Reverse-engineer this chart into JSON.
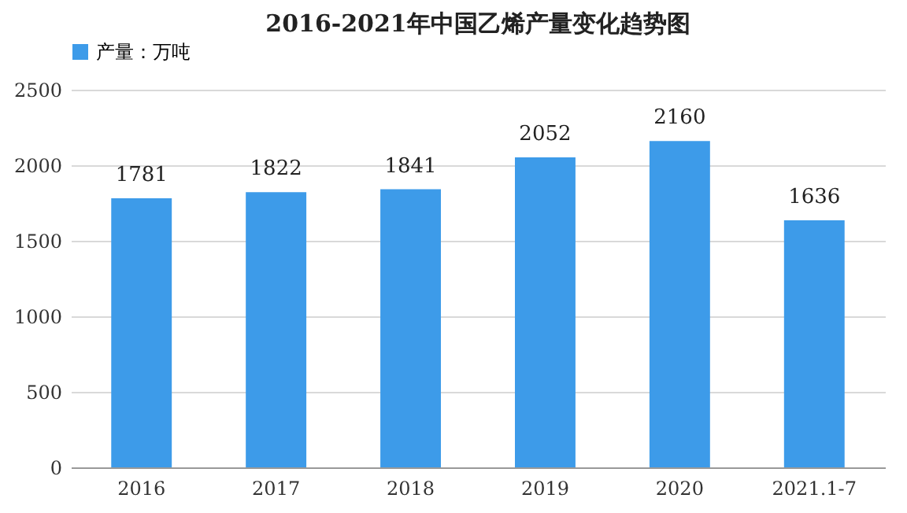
{
  "chart_data": {
    "type": "bar",
    "title": "2016-2021年中国乙烯产量变化趋势图",
    "categories": [
      "2016",
      "2017",
      "2018",
      "2019",
      "2020",
      "2021.1-7"
    ],
    "series": [
      {
        "name": "产量：万吨",
        "color": "#3d9be9",
        "values": [
          1781,
          1822,
          1841,
          2052,
          2160,
          1636
        ]
      }
    ],
    "ylim": [
      0,
      2500
    ],
    "yticks": [
      0,
      500,
      1000,
      1500,
      2000,
      2500
    ],
    "grid": "y",
    "legend": "top",
    "data_labels": true
  }
}
